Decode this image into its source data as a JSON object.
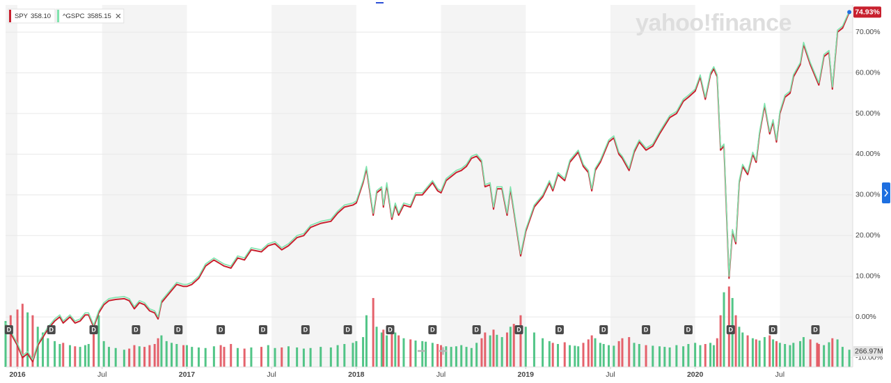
{
  "chart_data": {
    "type": "line",
    "watermark": "yahoo!finance",
    "legend": "top-left",
    "grid": true,
    "badge": "74.93%",
    "xlim": [
      2015.93,
      2020.93
    ],
    "xticks": [
      {
        "value": 2016,
        "label": "2016"
      },
      {
        "value": 2016.5,
        "label": "Jul"
      },
      {
        "value": 2017,
        "label": "2017"
      },
      {
        "value": 2017.5,
        "label": "Jul"
      },
      {
        "value": 2018,
        "label": "2018"
      },
      {
        "value": 2018.5,
        "label": "Jul"
      },
      {
        "value": 2019,
        "label": "2019"
      },
      {
        "value": 2019.5,
        "label": "Jul"
      },
      {
        "value": 2020,
        "label": "2020"
      },
      {
        "value": 2020.5,
        "label": "Jul"
      }
    ],
    "ylim": [
      -12.3,
      76.7
    ],
    "yticks": [
      {
        "value": 70,
        "label": "70.00%"
      },
      {
        "value": 60,
        "label": "60.00%"
      },
      {
        "value": 50,
        "label": "50.00%"
      },
      {
        "value": 40,
        "label": "40.00%"
      },
      {
        "value": 30,
        "label": "30.00%"
      },
      {
        "value": 20,
        "label": "20.00%"
      },
      {
        "value": 10,
        "label": "10.00%"
      },
      {
        "value": 0,
        "label": "0.00%"
      },
      {
        "value": -10,
        "label": "-10.00%"
      }
    ],
    "y2lim": [
      0,
      6300
    ],
    "y2ticks": [
      {
        "value": 266.97,
        "label": "266.97M"
      }
    ],
    "x": [
      2015.93,
      2015.96,
      2016.0,
      2016.03,
      2016.06,
      2016.09,
      2016.12,
      2016.15,
      2016.18,
      2016.22,
      2016.25,
      2016.27,
      2016.31,
      2016.34,
      2016.37,
      2016.4,
      2016.42,
      2016.45,
      2016.48,
      2016.51,
      2016.54,
      2016.58,
      2016.63,
      2016.66,
      2016.69,
      2016.72,
      2016.75,
      2016.78,
      2016.81,
      2016.83,
      2016.85,
      2016.88,
      2016.91,
      2016.94,
      2016.98,
      2017.0,
      2017.03,
      2017.07,
      2017.11,
      2017.16,
      2017.2,
      2017.22,
      2017.26,
      2017.3,
      2017.34,
      2017.38,
      2017.44,
      2017.48,
      2017.52,
      2017.56,
      2017.6,
      2017.65,
      2017.69,
      2017.73,
      2017.79,
      2017.85,
      2017.89,
      2017.93,
      2017.98,
      2018.0,
      2018.04,
      2018.06,
      2018.1,
      2018.12,
      2018.15,
      2018.16,
      2018.18,
      2018.21,
      2018.23,
      2018.25,
      2018.28,
      2018.32,
      2018.35,
      2018.39,
      2018.41,
      2018.45,
      2018.48,
      2018.5,
      2018.53,
      2018.56,
      2018.59,
      2018.62,
      2018.65,
      2018.68,
      2018.71,
      2018.74,
      2018.76,
      2018.79,
      2018.81,
      2018.83,
      2018.86,
      2018.89,
      2018.91,
      2018.93,
      2018.97,
      2019.0,
      2019.05,
      2019.1,
      2019.14,
      2019.16,
      2019.19,
      2019.23,
      2019.26,
      2019.29,
      2019.31,
      2019.34,
      2019.37,
      2019.39,
      2019.41,
      2019.44,
      2019.46,
      2019.49,
      2019.52,
      2019.55,
      2019.57,
      2019.61,
      2019.64,
      2019.67,
      2019.71,
      2019.75,
      2019.79,
      2019.82,
      2019.85,
      2019.89,
      2019.93,
      2019.96,
      2020.0,
      2020.03,
      2020.06,
      2020.09,
      2020.11,
      2020.13,
      2020.15,
      2020.17,
      2020.2,
      2020.22,
      2020.24,
      2020.26,
      2020.28,
      2020.31,
      2020.34,
      2020.36,
      2020.38,
      2020.41,
      2020.44,
      2020.46,
      2020.48,
      2020.5,
      2020.53,
      2020.56,
      2020.58,
      2020.62,
      2020.64,
      2020.68,
      2020.72,
      2020.73,
      2020.76,
      2020.79,
      2020.81,
      2020.84,
      2020.87,
      2020.91
    ],
    "series": [
      {
        "name": "SPY",
        "quote": "358.10",
        "color": "#c8202e",
        "values": [
          -2,
          -4,
          -7,
          -10,
          -9,
          -11,
          -7,
          -5,
          -3,
          -1,
          0,
          -1.5,
          0,
          -1.5,
          -1,
          0.5,
          0.5,
          -2.5,
          1,
          3,
          4,
          4.3,
          4.5,
          4,
          2,
          3.5,
          3,
          1.5,
          1,
          -0.5,
          3.5,
          5,
          6.5,
          8,
          7.5,
          7.5,
          8,
          9.5,
          12.5,
          14,
          13,
          12.5,
          12,
          14.5,
          14,
          16.5,
          16,
          17.5,
          18,
          16.5,
          17.5,
          19.5,
          20,
          22,
          23,
          23.5,
          25.5,
          27,
          27.5,
          28,
          33,
          36.5,
          25,
          30.5,
          31.5,
          27,
          32.5,
          24,
          27.5,
          25,
          27.5,
          27,
          30,
          30,
          31,
          33,
          31,
          30.5,
          33.5,
          34.5,
          35.5,
          36,
          37,
          39,
          39.5,
          38,
          32,
          32.5,
          26.5,
          31.5,
          31.5,
          25,
          31.5,
          26,
          15,
          21,
          27,
          29.5,
          33,
          31,
          35,
          33.5,
          38,
          39.5,
          40.5,
          37,
          35.5,
          31,
          36,
          38,
          40,
          43,
          44,
          40,
          39,
          36,
          40.5,
          43,
          41,
          42,
          45,
          47,
          49,
          50,
          53,
          54,
          55.5,
          59,
          53.5,
          59.5,
          61,
          59,
          41,
          42,
          9.5,
          21,
          18,
          33,
          37,
          35,
          40,
          38,
          45,
          52,
          45,
          48,
          43,
          50,
          54,
          55,
          59,
          62,
          67,
          62,
          58,
          57,
          64,
          65,
          56,
          70,
          71,
          74.93
        ]
      },
      {
        "name": "^GSPC",
        "quote": "3585.15",
        "color": "#7fe3ad",
        "values": [
          -1.5,
          -3.5,
          -6.5,
          -9.5,
          -8.5,
          -10.5,
          -6.5,
          -4.5,
          -2.5,
          -0.5,
          0.5,
          -1,
          0.5,
          -1,
          -0.5,
          1,
          1,
          -2,
          1.5,
          3.5,
          4.5,
          4.8,
          5,
          4.5,
          2.5,
          4,
          3.5,
          2,
          1.5,
          0,
          4,
          5.5,
          7,
          8.5,
          8,
          8,
          8.5,
          10,
          13,
          14.5,
          13.5,
          13,
          12.5,
          15,
          14.5,
          17,
          16.5,
          18,
          18.5,
          17,
          18,
          20,
          20.5,
          22.5,
          23.5,
          24,
          26,
          27.5,
          28,
          28.5,
          33.5,
          37,
          25.5,
          31,
          32,
          27.5,
          33,
          24.5,
          28,
          25.5,
          28,
          27.5,
          30.5,
          30.5,
          31.5,
          33.5,
          31.5,
          31,
          34,
          35,
          36,
          36.5,
          37.5,
          39.5,
          40,
          38.5,
          32.5,
          33,
          27,
          32,
          32,
          25.5,
          32,
          26.5,
          15.5,
          21.5,
          27.5,
          30,
          33.5,
          31.5,
          35.5,
          34,
          38.5,
          40,
          41,
          37.5,
          36,
          31.5,
          36.5,
          38.5,
          40.5,
          43.5,
          44.5,
          40.5,
          39.5,
          36.5,
          41,
          43.5,
          41.5,
          42.5,
          45.5,
          47.5,
          49.5,
          50.5,
          53.5,
          54.5,
          56,
          59.5,
          54,
          60,
          61.5,
          59.5,
          41.5,
          42.5,
          10,
          21.5,
          18.5,
          33.5,
          37.5,
          35.5,
          40.5,
          38.5,
          45.5,
          52.5,
          45.5,
          48.5,
          43.5,
          50.5,
          54.5,
          55.5,
          59.5,
          62.5,
          67.5,
          62.5,
          58.5,
          57.5,
          64.5,
          65.5,
          56.5,
          70.5,
          71.5,
          75.2
        ]
      }
    ],
    "volume": {
      "axis": "y2",
      "up_color": "#3fbf7a",
      "down_color": "#e2515c",
      "values": [
        800,
        900,
        1000,
        1100,
        950,
        900,
        700,
        600,
        500,
        450,
        400,
        420,
        380,
        360,
        350,
        380,
        400,
        700,
        900,
        450,
        350,
        330,
        300,
        320,
        380,
        360,
        350,
        380,
        400,
        500,
        550,
        450,
        420,
        400,
        380,
        380,
        350,
        340,
        330,
        360,
        380,
        350,
        400,
        330,
        320,
        340,
        350,
        380,
        330,
        340,
        360,
        340,
        320,
        330,
        350,
        340,
        380,
        400,
        420,
        450,
        520,
        900,
        1200,
        700,
        600,
        650,
        550,
        700,
        600,
        550,
        500,
        480,
        460,
        450,
        440,
        420,
        400,
        380,
        360,
        350,
        360,
        380,
        350,
        330,
        420,
        500,
        600,
        550,
        650,
        560,
        520,
        600,
        700,
        750,
        900,
        700,
        600,
        500,
        450,
        420,
        400,
        430,
        380,
        370,
        360,
        420,
        480,
        550,
        500,
        420,
        400,
        380,
        370,
        450,
        500,
        520,
        420,
        400,
        380,
        370,
        360,
        350,
        340,
        380,
        360,
        400,
        420,
        380,
        400,
        420,
        380,
        500,
        900,
        1300,
        1400,
        1200,
        900,
        700,
        600,
        550,
        500,
        480,
        460,
        520,
        550,
        480,
        450,
        420,
        400,
        380,
        420,
        450,
        520,
        480,
        420,
        400,
        380,
        430,
        500,
        480,
        350,
        300
      ]
    },
    "dividends": {
      "label": "D",
      "x": [
        2015.95,
        2016.2,
        2016.45,
        2016.7,
        2016.95,
        2017.2,
        2017.45,
        2017.7,
        2017.95,
        2018.2,
        2018.45,
        2018.71,
        2018.96,
        2019.2,
        2019.46,
        2019.71,
        2019.96,
        2020.21,
        2020.46,
        2020.71
      ]
    }
  }
}
